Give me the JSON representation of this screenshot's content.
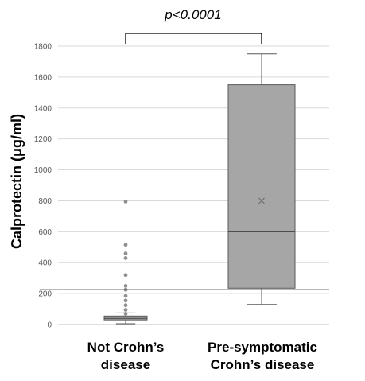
{
  "chart_data": {
    "type": "box",
    "ylabel": "Calprotectin (μg/ml)",
    "ylim": [
      0,
      1800
    ],
    "yticks": [
      "0",
      "200",
      "400",
      "600",
      "800",
      "1000",
      "1200",
      "1400",
      "1600",
      "1800"
    ],
    "grid": true,
    "categories": [
      [
        "Not Crohn’s",
        "disease"
      ],
      [
        "Pre-symptomatic",
        "Crohn’s disease"
      ]
    ],
    "boxes": [
      {
        "whisker_low": 5,
        "q1": 30,
        "median": 40,
        "q3": 55,
        "whisker_high": 75,
        "outliers": [
          70,
          95,
          125,
          155,
          185,
          225,
          250,
          320,
          430,
          460,
          515,
          795
        ]
      },
      {
        "whisker_low": 130,
        "q1": 235,
        "median": 600,
        "q3": 1550,
        "whisker_high": 1750,
        "mean": 800,
        "outliers": []
      }
    ],
    "reference_line": 225,
    "annotation": "p<0.0001",
    "colors": {
      "box_fill": "#a6a6a6",
      "box_stroke": "#595959",
      "point": "#909090",
      "grid": "#d9d9d9"
    }
  }
}
